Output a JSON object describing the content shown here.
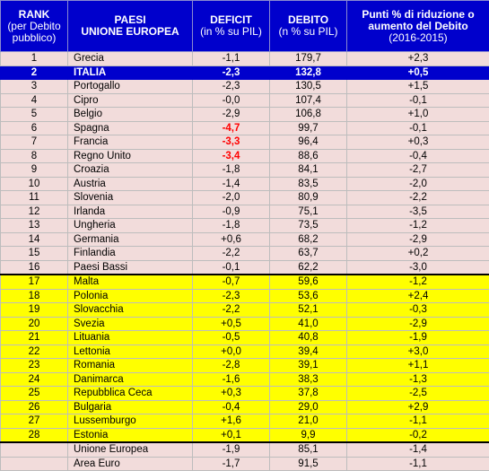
{
  "headers": {
    "rank": [
      "RANK",
      "(per Debito",
      "pubblico)"
    ],
    "country": [
      "PAESI",
      "UNIONE EUROPEA"
    ],
    "deficit": [
      "DEFICIT",
      "(in % su PIL)"
    ],
    "debt": [
      "DEBITO",
      "(n % su PIL)"
    ],
    "delta": [
      "Punti % di riduzione o",
      "aumento del Debito",
      "(2016-2015)"
    ]
  },
  "colors": {
    "header_bg": "#0000cc",
    "highlight_bg": "#0000cc",
    "pink_bg": "#f2dcdb",
    "yellow_bg": "#ffff00",
    "red_text": "#ff0000"
  },
  "rows": [
    {
      "rank": "1",
      "country": "Grecia",
      "deficit": "-1,1",
      "debt": "179,7",
      "delta": "+2,3",
      "style": "pink"
    },
    {
      "rank": "2",
      "country": "ITALIA",
      "deficit": "-2,3",
      "debt": "132,8",
      "delta": "+0,5",
      "style": "blue"
    },
    {
      "rank": "3",
      "country": "Portogallo",
      "deficit": "-2,3",
      "debt": "130,5",
      "delta": "+1,5",
      "style": "pink"
    },
    {
      "rank": "4",
      "country": "Cipro",
      "deficit": "-0,0",
      "debt": "107,4",
      "delta": "-0,1",
      "style": "pink"
    },
    {
      "rank": "5",
      "country": "Belgio",
      "deficit": "-2,9",
      "debt": "106,8",
      "delta": "+1,0",
      "style": "pink"
    },
    {
      "rank": "6",
      "country": "Spagna",
      "deficit": "-4,7",
      "debt": "99,7",
      "delta": "-0,1",
      "style": "pink",
      "deficit_red": true
    },
    {
      "rank": "7",
      "country": "Francia",
      "deficit": "-3,3",
      "debt": "96,4",
      "delta": "+0,3",
      "style": "pink",
      "deficit_red": true
    },
    {
      "rank": "8",
      "country": "Regno Unito",
      "deficit": "-3,4",
      "debt": "88,6",
      "delta": "-0,4",
      "style": "pink",
      "deficit_red": true
    },
    {
      "rank": "9",
      "country": "Croazia",
      "deficit": "-1,8",
      "debt": "84,1",
      "delta": "-2,7",
      "style": "pink"
    },
    {
      "rank": "10",
      "country": "Austria",
      "deficit": "-1,4",
      "debt": "83,5",
      "delta": "-2,0",
      "style": "pink"
    },
    {
      "rank": "11",
      "country": "Slovenia",
      "deficit": "-2,0",
      "debt": "80,9",
      "delta": "-2,2",
      "style": "pink"
    },
    {
      "rank": "12",
      "country": "Irlanda",
      "deficit": "-0,9",
      "debt": "75,1",
      "delta": "-3,5",
      "style": "pink"
    },
    {
      "rank": "13",
      "country": "Ungheria",
      "deficit": "-1,8",
      "debt": "73,5",
      "delta": "-1,2",
      "style": "pink"
    },
    {
      "rank": "14",
      "country": "Germania",
      "deficit": "+0,6",
      "debt": "68,2",
      "delta": "-2,9",
      "style": "pink"
    },
    {
      "rank": "15",
      "country": "Finlandia",
      "deficit": "-2,2",
      "debt": "63,7",
      "delta": "+0,2",
      "style": "pink"
    },
    {
      "rank": "16",
      "country": "Paesi Bassi",
      "deficit": "-0,1",
      "debt": "62,2",
      "delta": "-3,0",
      "style": "pink"
    },
    {
      "rank": "17",
      "country": "Malta",
      "deficit": "-0,7",
      "debt": "59,6",
      "delta": "-1,2",
      "style": "yellow",
      "sep": true
    },
    {
      "rank": "18",
      "country": "Polonia",
      "deficit": "-2,3",
      "debt": "53,6",
      "delta": "+2,4",
      "style": "yellow"
    },
    {
      "rank": "19",
      "country": "Slovacchia",
      "deficit": "-2,2",
      "debt": "52,1",
      "delta": "-0,3",
      "style": "yellow"
    },
    {
      "rank": "20",
      "country": "Svezia",
      "deficit": "+0,5",
      "debt": "41,0",
      "delta": "-2,9",
      "style": "yellow"
    },
    {
      "rank": "21",
      "country": "Lituania",
      "deficit": "-0,5",
      "debt": "40,8",
      "delta": "-1,9",
      "style": "yellow"
    },
    {
      "rank": "22",
      "country": "Lettonia",
      "deficit": "+0,0",
      "debt": "39,4",
      "delta": "+3,0",
      "style": "yellow"
    },
    {
      "rank": "23",
      "country": "Romania",
      "deficit": "-2,8",
      "debt": "39,1",
      "delta": "+1,1",
      "style": "yellow"
    },
    {
      "rank": "24",
      "country": "Danimarca",
      "deficit": "-1,6",
      "debt": "38,3",
      "delta": "-1,3",
      "style": "yellow"
    },
    {
      "rank": "25",
      "country": "Repubblica Ceca",
      "deficit": "+0,3",
      "debt": "37,8",
      "delta": "-2,5",
      "style": "yellow"
    },
    {
      "rank": "26",
      "country": "Bulgaria",
      "deficit": "-0,4",
      "debt": "29,0",
      "delta": "+2,9",
      "style": "yellow"
    },
    {
      "rank": "27",
      "country": "Lussemburgo",
      "deficit": "+1,6",
      "debt": "21,0",
      "delta": "-1,1",
      "style": "yellow"
    },
    {
      "rank": "28",
      "country": "Estonia",
      "deficit": "+0,1",
      "debt": "9,9",
      "delta": "-0,2",
      "style": "yellow"
    },
    {
      "rank": "",
      "country": "Unione Europea",
      "deficit": "-1,9",
      "debt": "85,1",
      "delta": "-1,4",
      "style": "pink",
      "sep": true
    },
    {
      "rank": "",
      "country": "Area Euro",
      "deficit": "-1,7",
      "debt": "91,5",
      "delta": "-1,1",
      "style": "pink"
    }
  ]
}
